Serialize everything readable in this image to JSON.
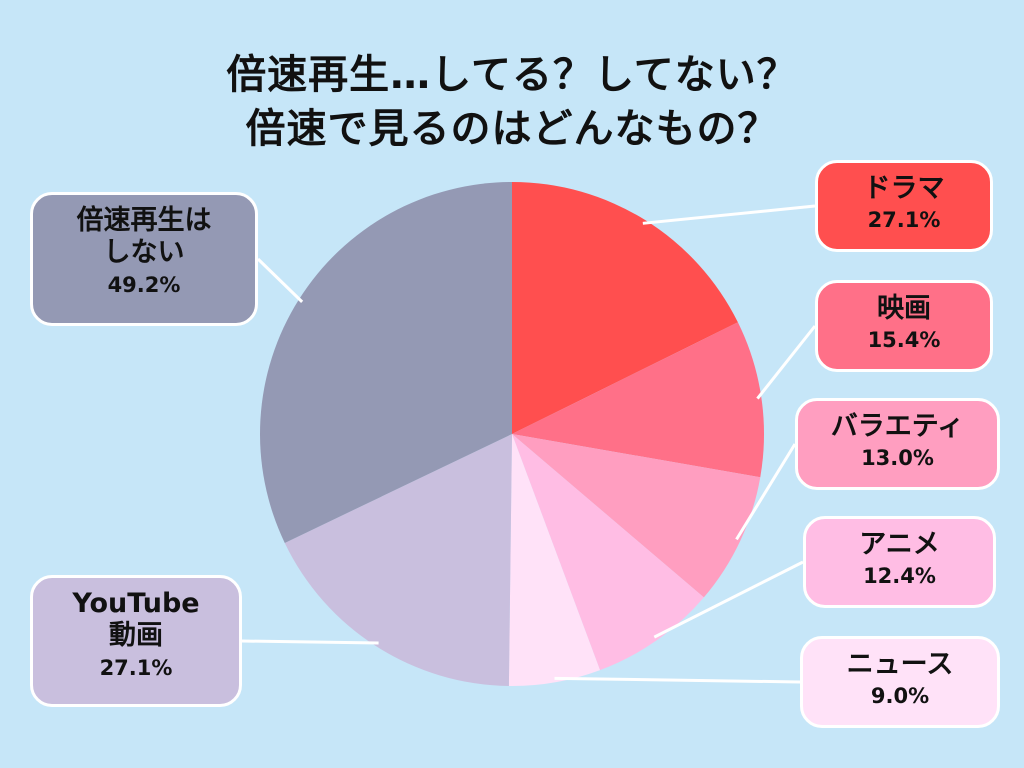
{
  "title": {
    "line1": "倍速再生…してる？してない？",
    "line2": "倍速で見るのはどんなもの？"
  },
  "chart_data": {
    "type": "pie",
    "title": "倍速再生…してる？してない？ 倍速で見るのはどんなもの？",
    "slices": [
      {
        "label": "ドラマ",
        "pct_label": "27.1%",
        "value": 27.1,
        "color": "#ff4f4f"
      },
      {
        "label": "映画",
        "pct_label": "15.4%",
        "value": 15.4,
        "color": "#ff7088"
      },
      {
        "label": "バラエティ",
        "pct_label": "13.0%",
        "value": 13.0,
        "color": "#ff9ec0"
      },
      {
        "label": "アニメ",
        "pct_label": "12.4%",
        "value": 12.4,
        "color": "#ffbde4"
      },
      {
        "label": "ニュース",
        "pct_label": "9.0%",
        "value": 9.0,
        "color": "#ffe2f8"
      },
      {
        "label": "YouTube動画",
        "pct_label": "27.1%",
        "value": 27.1,
        "color": "#c9bfde"
      },
      {
        "label": "倍速再生はしない",
        "pct_label": "49.2%",
        "value": 49.2,
        "color": "#9499b4"
      }
    ]
  },
  "labels": {
    "drama": {
      "name": "ドラマ",
      "pct": "27.1%"
    },
    "movie": {
      "name": "映画",
      "pct": "15.4%"
    },
    "variety": {
      "name": "バラエティ",
      "pct": "13.0%"
    },
    "anime": {
      "name": "アニメ",
      "pct": "12.4%"
    },
    "news": {
      "name": "ニュース",
      "pct": "9.0%"
    },
    "youtube": {
      "name_line1": "YouTube",
      "name_line2": "動画",
      "pct": "27.1%"
    },
    "none": {
      "name_line1": "倍速再生は",
      "name_line2": "しない",
      "pct": "49.2%"
    }
  }
}
